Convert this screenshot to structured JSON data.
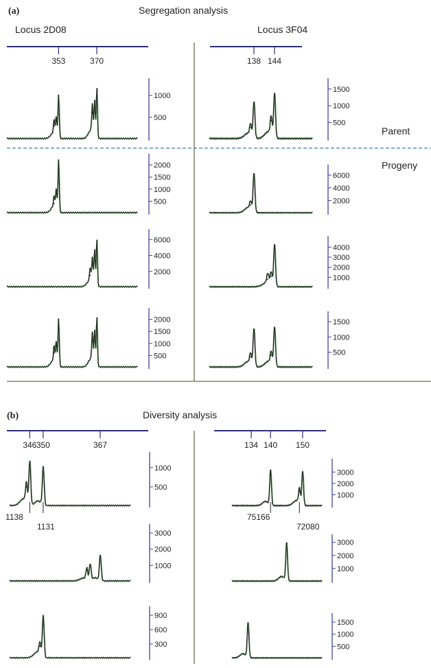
{
  "figure": {
    "panel_a_label": "(a)",
    "panel_a_title": "Segregation analysis",
    "panel_b_label": "(b)",
    "panel_b_title": "Diversity analysis",
    "locus_left": "Locus 2D08",
    "locus_right": "Locus 3F04",
    "parent_label": "Parent",
    "progeny_label": "Progeny"
  },
  "chart_data": [
    {
      "id": "a-2D08-parent",
      "type": "line",
      "panel": "a",
      "ruler_ticks": [
        "353",
        "370"
      ],
      "yticks": [
        "1000",
        "500"
      ],
      "ylim": [
        0,
        1300
      ],
      "peaks": [
        {
          "x": 351,
          "y": 300
        },
        {
          "x": 352,
          "y": 420
        },
        {
          "x": 353,
          "y": 1000
        },
        {
          "x": 368,
          "y": 600
        },
        {
          "x": 369,
          "y": 750
        },
        {
          "x": 370,
          "y": 1150
        }
      ]
    },
    {
      "id": "a-3F04-parent",
      "type": "line",
      "panel": "a",
      "ruler_ticks": [
        "138",
        "144"
      ],
      "yticks": [
        "1500",
        "1000",
        "500"
      ],
      "ylim": [
        0,
        1700
      ],
      "peaks": [
        {
          "x": 137,
          "y": 350
        },
        {
          "x": 138,
          "y": 1100
        },
        {
          "x": 143,
          "y": 550
        },
        {
          "x": 144,
          "y": 1350
        }
      ]
    },
    {
      "id": "a-2D08-progeny-1",
      "type": "line",
      "panel": "a",
      "yticks": [
        "2000",
        "1500",
        "1000",
        "500"
      ],
      "ylim": [
        0,
        2300
      ],
      "peaks": [
        {
          "x": 351,
          "y": 400
        },
        {
          "x": 352,
          "y": 800
        },
        {
          "x": 353,
          "y": 2200
        }
      ]
    },
    {
      "id": "a-3F04-progeny-1",
      "type": "line",
      "panel": "a",
      "yticks": [
        "6000",
        "4000",
        "2000"
      ],
      "ylim": [
        0,
        7000
      ],
      "peaks": [
        {
          "x": 137,
          "y": 1300
        },
        {
          "x": 138,
          "y": 6200
        }
      ]
    },
    {
      "id": "a-2D08-progeny-2",
      "type": "line",
      "panel": "a",
      "yticks": [
        "6000",
        "4000",
        "2000"
      ],
      "ylim": [
        0,
        6800
      ],
      "peaks": [
        {
          "x": 367,
          "y": 1500
        },
        {
          "x": 368,
          "y": 2700
        },
        {
          "x": 369,
          "y": 4000
        },
        {
          "x": 370,
          "y": 5900
        }
      ]
    },
    {
      "id": "a-3F04-progeny-2",
      "type": "line",
      "panel": "a",
      "yticks": [
        "4000",
        "3000",
        "2000",
        "1000"
      ],
      "ylim": [
        0,
        4700
      ],
      "peaks": [
        {
          "x": 142,
          "y": 800
        },
        {
          "x": 143,
          "y": 1100
        },
        {
          "x": 144,
          "y": 4200
        }
      ]
    },
    {
      "id": "a-2D08-progeny-3",
      "type": "line",
      "panel": "a",
      "yticks": [
        "2000",
        "1500",
        "1000",
        "500"
      ],
      "ylim": [
        0,
        2300
      ],
      "peaks": [
        {
          "x": 351,
          "y": 600
        },
        {
          "x": 352,
          "y": 900
        },
        {
          "x": 353,
          "y": 2000
        },
        {
          "x": 368,
          "y": 1100
        },
        {
          "x": 369,
          "y": 1300
        },
        {
          "x": 370,
          "y": 2050
        }
      ]
    },
    {
      "id": "a-3F04-progeny-3",
      "type": "line",
      "panel": "a",
      "yticks": [
        "1500",
        "1000",
        "500"
      ],
      "ylim": [
        0,
        1700
      ],
      "peaks": [
        {
          "x": 137,
          "y": 350
        },
        {
          "x": 138,
          "y": 1250
        },
        {
          "x": 143,
          "y": 400
        },
        {
          "x": 144,
          "y": 1300
        }
      ]
    },
    {
      "id": "b-2D08-1",
      "type": "line",
      "panel": "b",
      "ruler_ticks": [
        "346",
        "350",
        "367"
      ],
      "yticks": [
        "1000",
        "500"
      ],
      "ylim": [
        0,
        1300
      ],
      "annotations": [
        "1138",
        "1131"
      ],
      "peaks": [
        {
          "x": 345,
          "y": 500
        },
        {
          "x": 346,
          "y": 1150
        },
        {
          "x": 350,
          "y": 1000
        }
      ]
    },
    {
      "id": "b-3F04-1",
      "type": "line",
      "panel": "b",
      "ruler_ticks": [
        "134",
        "140",
        "150"
      ],
      "yticks": [
        "3000",
        "2000",
        "1000"
      ],
      "ylim": [
        0,
        3800
      ],
      "annotations": [
        "75166",
        "72080"
      ],
      "peaks": [
        {
          "x": 140,
          "y": 3100
        },
        {
          "x": 149,
          "y": 1300
        },
        {
          "x": 150,
          "y": 3000
        }
      ]
    },
    {
      "id": "b-2D08-2",
      "type": "line",
      "panel": "b",
      "yticks": [
        "3000",
        "2000",
        "1000"
      ],
      "ylim": [
        0,
        3300
      ],
      "peaks": [
        {
          "x": 363,
          "y": 700
        },
        {
          "x": 364,
          "y": 1000
        },
        {
          "x": 367,
          "y": 1600
        }
      ]
    },
    {
      "id": "b-3F04-2",
      "type": "line",
      "panel": "b",
      "yticks": [
        "3000",
        "2000",
        "1000"
      ],
      "ylim": [
        0,
        3300
      ],
      "peaks": [
        {
          "x": 145,
          "y": 2900
        }
      ]
    },
    {
      "id": "b-2D08-3",
      "type": "line",
      "panel": "b",
      "yticks": [
        "900",
        "600",
        "300"
      ],
      "ylim": [
        0,
        1000
      ],
      "peaks": [
        {
          "x": 349,
          "y": 250
        },
        {
          "x": 350,
          "y": 870
        }
      ]
    },
    {
      "id": "b-3F04-3",
      "type": "line",
      "panel": "b",
      "yticks": [
        "1500",
        "1000",
        "500"
      ],
      "ylim": [
        0,
        1700
      ],
      "peaks": [
        {
          "x": 133,
          "y": 1450
        }
      ]
    }
  ]
}
